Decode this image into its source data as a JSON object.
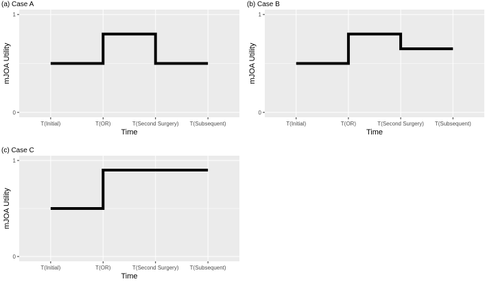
{
  "figure": {
    "colors": {
      "panel_bg": "#EBEBEB",
      "grid": "#FFFFFF",
      "line": "#000000",
      "tick_text": "#4D4D4D",
      "tick_mark": "#333333"
    }
  },
  "chart_data": [
    {
      "type": "line",
      "title": "(a) Case A",
      "xlabel": "Time",
      "ylabel": "mJOA Utility",
      "categories": [
        "T(Initial)",
        "T(OR)",
        "T(Second Surgery)",
        "T(Subsequent)"
      ],
      "series": [
        {
          "values": [
            0.5,
            0.8,
            0.5,
            0.5
          ]
        }
      ],
      "step": true,
      "ylim": [
        0,
        1
      ],
      "yticks": [
        "0",
        "1"
      ],
      "grid": true,
      "legend": "none"
    },
    {
      "type": "line",
      "title": "(b) Case B",
      "xlabel": "Time",
      "ylabel": "mJOA Utility",
      "categories": [
        "T(Initial)",
        "T(OR)",
        "T(Second Surgery)",
        "T(Subsequent)"
      ],
      "series": [
        {
          "values": [
            0.5,
            0.8,
            0.65,
            0.65
          ]
        }
      ],
      "step": true,
      "ylim": [
        0,
        1
      ],
      "yticks": [
        "0",
        "1"
      ],
      "grid": true,
      "legend": "none"
    },
    {
      "type": "line",
      "title": "(c) Case C",
      "xlabel": "Time",
      "ylabel": "mJOA Utility",
      "categories": [
        "T(Initial)",
        "T(OR)",
        "T(Second Surgery)",
        "T(Subsequent)"
      ],
      "series": [
        {
          "values": [
            0.5,
            0.9,
            0.9,
            0.9
          ]
        }
      ],
      "step": true,
      "ylim": [
        0,
        1
      ],
      "yticks": [
        "0",
        "1"
      ],
      "grid": true,
      "legend": "none"
    }
  ]
}
